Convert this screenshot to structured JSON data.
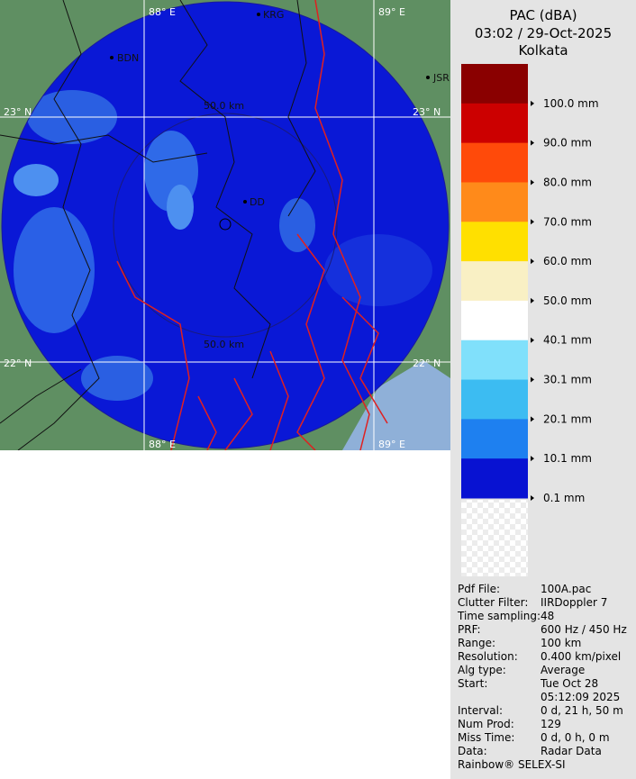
{
  "map": {
    "lon_labels": [
      "88° E",
      "89° E"
    ],
    "lat_labels": [
      "23° N",
      "22° N"
    ],
    "range_label": "50.0 km",
    "places": [
      "KRG",
      "BDN",
      "JSR",
      "DD"
    ]
  },
  "legend": {
    "title": "PAC (dBA)",
    "timestamp": "03:02 / 29-Oct-2025",
    "station": "Kolkata",
    "items": [
      {
        "label": "100.0 mm",
        "color": "#8a0000"
      },
      {
        "label": "90.0 mm",
        "color": "#cc0000"
      },
      {
        "label": "80.0 mm",
        "color": "#ff4a0a"
      },
      {
        "label": "70.0 mm",
        "color": "#ff8a1a"
      },
      {
        "label": "60.0 mm",
        "color": "#ffe000"
      },
      {
        "label": "50.0 mm",
        "color": "#f9f0c4"
      },
      {
        "label": "40.1 mm",
        "color": "#ffffff"
      },
      {
        "label": "30.1 mm",
        "color": "#80e0fb"
      },
      {
        "label": "20.1 mm",
        "color": "#3cbcf2"
      },
      {
        "label": "10.1 mm",
        "color": "#1e80f0"
      },
      {
        "label": "0.1 mm",
        "color": "#0812d2"
      }
    ]
  },
  "info": [
    [
      "Pdf File:",
      "100A.pac"
    ],
    [
      "Clutter Filter:",
      "IIRDoppler 7"
    ],
    [
      "Time sampling:",
      "48"
    ],
    [
      "PRF:",
      "600 Hz / 450 Hz"
    ],
    [
      "Range:",
      "100 km"
    ],
    [
      "Resolution:",
      "0.400 km/pixel"
    ],
    [
      "Alg type:",
      "Average"
    ],
    [
      "Start:",
      "Tue Oct 28"
    ],
    [
      null,
      "05:12:09 2025"
    ],
    [
      "Interval:",
      "0 d, 21 h, 50 m"
    ],
    [
      "Num Prod:",
      "129"
    ],
    [
      "Miss Time:",
      "0 d, 0 h, 0 m"
    ],
    [
      "Data:",
      "Radar Data"
    ]
  ],
  "footer": "Rainbow® SELEX-SI"
}
